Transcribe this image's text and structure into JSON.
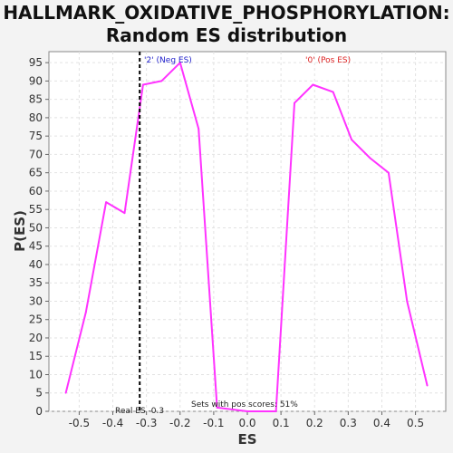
{
  "chart_data": {
    "type": "line",
    "title_line1": "HALLMARK_OXIDATIVE_PHOSPHORYLATION:",
    "title_line2": "Random ES distribution",
    "xlabel": "ES",
    "ylabel": "P(ES)",
    "xlim": [
      -0.59,
      0.59
    ],
    "ylim": [
      0,
      98
    ],
    "xticks": [
      -0.5,
      -0.4,
      -0.3,
      -0.2,
      -0.1,
      0.0,
      0.1,
      0.2,
      0.3,
      0.4,
      0.5
    ],
    "xtick_labels": [
      "-0.5",
      "-0.4",
      "-0.3",
      "-0.2",
      "-0.1",
      "0.0",
      "0.1",
      "0.2",
      "0.3",
      "0.4",
      "0.5"
    ],
    "yticks": [
      0,
      5,
      10,
      15,
      20,
      25,
      30,
      35,
      40,
      45,
      50,
      55,
      60,
      65,
      70,
      75,
      80,
      85,
      90,
      95
    ],
    "grid": true,
    "line_color": "#ff33ff",
    "series": [
      {
        "x": [
          -0.54,
          -0.48,
          -0.42,
          -0.365,
          -0.31,
          -0.255,
          -0.2,
          -0.145,
          -0.09,
          0.0,
          0.085,
          0.14,
          0.195,
          0.255,
          0.31,
          0.365,
          0.42,
          0.475,
          0.535
        ],
        "y": [
          5,
          27,
          57,
          54,
          89,
          90,
          95,
          77,
          1,
          0,
          0,
          84,
          89,
          87,
          74,
          69,
          65,
          30,
          7
        ]
      }
    ],
    "real_es": -0.32,
    "real_es_label": "Real ES -0.3",
    "neg_label": "'2' (Neg ES)",
    "neg_color": "#2222cc",
    "pos_label": "'0' (Pos ES)",
    "pos_color": "#dd2222",
    "pos_scores_label": "Sets with pos scores: 51%"
  }
}
